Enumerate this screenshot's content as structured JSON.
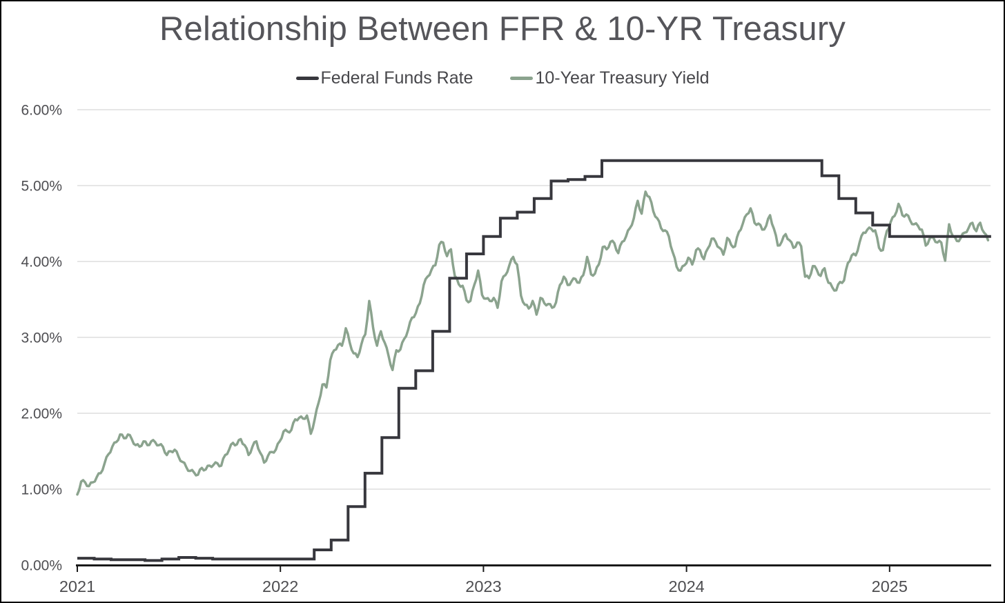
{
  "chart_data": {
    "type": "line",
    "title": "Relationship Between FFR & 10-YR Treasury",
    "legend_position": "top-center",
    "grid": "horizontal",
    "colors": {
      "ffr_line": "#37373d",
      "treasury_line": "#8ba38e",
      "gridline": "#d6d6d6",
      "axis": "#1a1a1a",
      "title_text": "#55555a",
      "tick_text": "#4e4e52"
    },
    "x_axis": {
      "tick_labels": [
        "2021",
        "2022",
        "2023",
        "2024",
        "2025"
      ],
      "tick_years": [
        2021,
        2022,
        2023,
        2024,
        2025
      ],
      "range": [
        2021.0,
        2025.5
      ]
    },
    "y_axis": {
      "tick_labels": [
        "0.00%",
        "1.00%",
        "2.00%",
        "3.00%",
        "4.00%",
        "5.00%",
        "6.00%"
      ],
      "tick_values": [
        0,
        1,
        2,
        3,
        4,
        5,
        6
      ],
      "range": [
        0,
        6
      ],
      "unit": "%"
    },
    "series": [
      {
        "name": "Federal Funds Rate",
        "color": "#37373d",
        "style": "step",
        "frequency": "monthly",
        "start_year": 2021,
        "monthly_values": [
          0.09,
          0.08,
          0.07,
          0.07,
          0.06,
          0.08,
          0.1,
          0.09,
          0.08,
          0.08,
          0.08,
          0.08,
          0.08,
          0.08,
          0.2,
          0.33,
          0.77,
          1.21,
          1.68,
          2.33,
          2.56,
          3.08,
          3.78,
          4.1,
          4.33,
          4.57,
          4.65,
          4.83,
          5.06,
          5.08,
          5.12,
          5.33,
          5.33,
          5.33,
          5.33,
          5.33,
          5.33,
          5.33,
          5.33,
          5.33,
          5.33,
          5.33,
          5.33,
          5.33,
          5.13,
          4.83,
          4.64,
          4.48,
          4.33,
          4.33,
          4.33,
          4.33,
          4.33,
          4.33
        ]
      },
      {
        "name": "10-Year Treasury Yield",
        "color": "#8ba38e",
        "style": "line",
        "frequency": "weekly",
        "start_year": 2021,
        "step_days": 7,
        "weekly_values": [
          0.93,
          1.1,
          1.09,
          1.04,
          1.09,
          1.16,
          1.21,
          1.34,
          1.46,
          1.56,
          1.62,
          1.72,
          1.67,
          1.72,
          1.66,
          1.58,
          1.56,
          1.63,
          1.58,
          1.63,
          1.62,
          1.58,
          1.56,
          1.45,
          1.5,
          1.52,
          1.43,
          1.36,
          1.29,
          1.24,
          1.22,
          1.19,
          1.28,
          1.26,
          1.31,
          1.32,
          1.34,
          1.31,
          1.45,
          1.52,
          1.61,
          1.59,
          1.66,
          1.58,
          1.45,
          1.56,
          1.63,
          1.48,
          1.35,
          1.44,
          1.49,
          1.52,
          1.63,
          1.76,
          1.76,
          1.78,
          1.92,
          1.94,
          1.93,
          1.97,
          1.73,
          1.92,
          2.14,
          2.38,
          2.34,
          2.7,
          2.83,
          2.9,
          2.89,
          3.12,
          2.93,
          2.79,
          2.74,
          2.91,
          3.04,
          3.48,
          3.13,
          2.89,
          3.08,
          2.93,
          2.75,
          2.57,
          2.83,
          2.84,
          2.98,
          3.1,
          3.26,
          3.32,
          3.45,
          3.69,
          3.8,
          3.89,
          3.95,
          4.22,
          4.25,
          4.07,
          4.16,
          3.81,
          3.7,
          3.68,
          3.49,
          3.48,
          3.69,
          3.88,
          3.56,
          3.51,
          3.48,
          3.52,
          3.39,
          3.74,
          3.82,
          3.95,
          4.06,
          3.96,
          3.55,
          3.43,
          3.38,
          3.48,
          3.3,
          3.52,
          3.45,
          3.44,
          3.39,
          3.46,
          3.69,
          3.8,
          3.69,
          3.74,
          3.77,
          3.72,
          3.82,
          4.06,
          3.83,
          3.84,
          3.96,
          4.19,
          4.16,
          4.26,
          4.24,
          4.11,
          4.26,
          4.33,
          4.44,
          4.57,
          4.8,
          4.63,
          4.92,
          4.85,
          4.66,
          4.57,
          4.44,
          4.41,
          4.33,
          4.12,
          3.93,
          3.88,
          3.95,
          4.05,
          3.96,
          4.15,
          4.15,
          4.03,
          4.17,
          4.3,
          4.26,
          4.18,
          4.09,
          4.31,
          4.22,
          4.2,
          4.39,
          4.5,
          4.62,
          4.7,
          4.51,
          4.5,
          4.42,
          4.47,
          4.61,
          4.43,
          4.21,
          4.26,
          4.36,
          4.28,
          4.18,
          4.25,
          4.2,
          3.8,
          3.78,
          3.94,
          3.89,
          3.81,
          3.91,
          3.72,
          3.66,
          3.62,
          3.73,
          3.75,
          3.98,
          4.08,
          4.08,
          4.25,
          4.38,
          4.42,
          4.43,
          4.41,
          4.18,
          4.15,
          4.4,
          4.52,
          4.6,
          4.76,
          4.61,
          4.62,
          4.54,
          4.49,
          4.47,
          4.42,
          4.21,
          4.3,
          4.31,
          4.25,
          4.25,
          4.01,
          4.49,
          4.33,
          4.27,
          4.31,
          4.38,
          4.44,
          4.51,
          4.4,
          4.51,
          4.38,
          4.28
        ]
      }
    ]
  }
}
